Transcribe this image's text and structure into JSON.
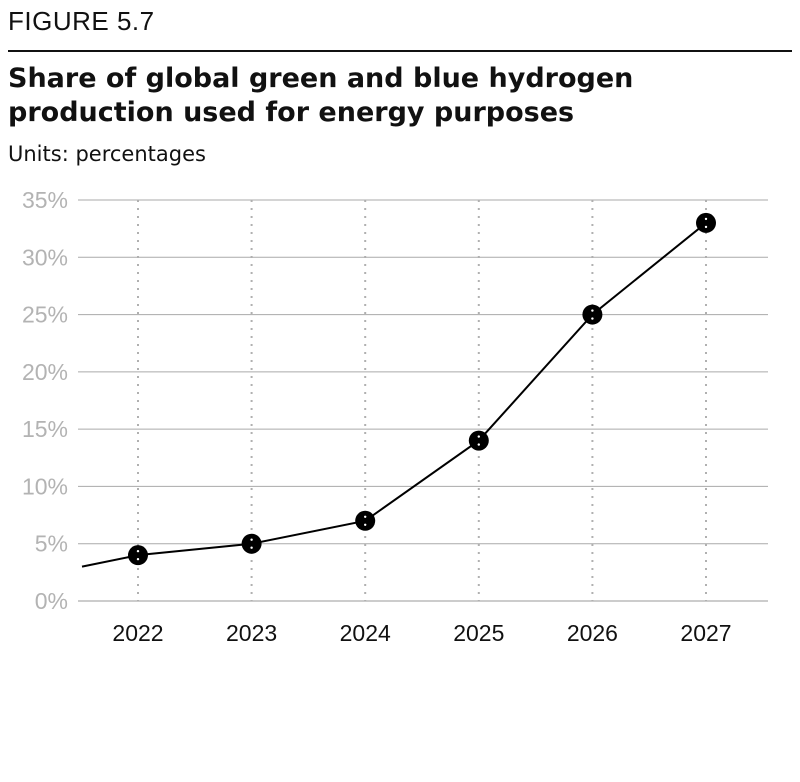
{
  "figure_label": "FIGURE 5.7",
  "units_text": "Units: percentages",
  "chart_data": {
    "type": "line",
    "title": "Share of global green and blue hydrogen production used for energy purposes",
    "xlabel": "",
    "ylabel": "",
    "categories": [
      "2022",
      "2023",
      "2024",
      "2025",
      "2026",
      "2027"
    ],
    "series": [
      {
        "values": [
          4,
          5,
          7,
          14,
          25,
          33
        ]
      }
    ],
    "leading_value": 3,
    "ylim": [
      0,
      35
    ],
    "yticks": [
      0,
      5,
      10,
      15,
      20,
      25,
      30,
      35
    ],
    "ytick_labels": [
      "0%",
      "5%",
      "10%",
      "15%",
      "20%",
      "25%",
      "30%",
      "35%"
    ],
    "grid": true,
    "colors": {
      "line": "#000000",
      "grid": "#aaaaaa",
      "ytick": "#b3b3b3",
      "vgrid": "#b0b0b0"
    }
  }
}
